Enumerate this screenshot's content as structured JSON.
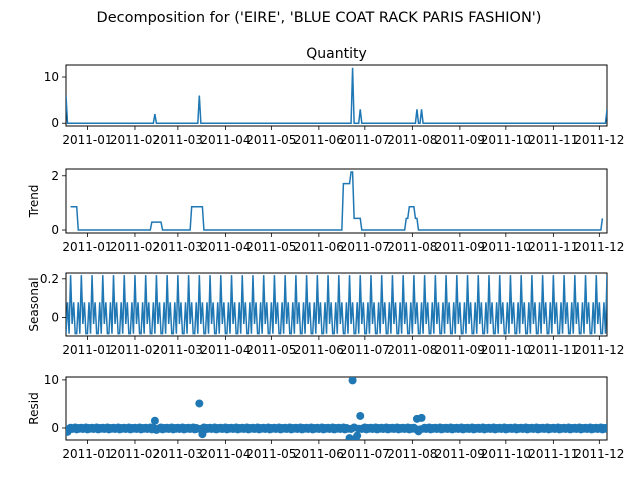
{
  "figure": {
    "title": "Decomposition for ('EIRE', 'BLUE COAT RACK PARIS FASHION')"
  },
  "colors": {
    "line": "#1f77b4",
    "axis": "#000000"
  },
  "x_axis": {
    "tick_labels": [
      "2011-01",
      "2011-02",
      "2011-03",
      "2011-04",
      "2011-05",
      "2011-06",
      "2011-07",
      "2011-08",
      "2011-09",
      "2011-10",
      "2011-11",
      "2011-12"
    ],
    "ticks_index": [
      14,
      45,
      73,
      104,
      134,
      165,
      195,
      226,
      257,
      287,
      318,
      348
    ],
    "xlim": [
      0,
      353
    ]
  },
  "chart_data": [
    {
      "type": "line",
      "title": "Quantity",
      "ylabel": "",
      "ylim": [
        -0.6,
        12.6
      ],
      "yticks": [
        0,
        10
      ],
      "n": 354,
      "baseline": 0,
      "points": [
        [
          0,
          6
        ],
        [
          58,
          2
        ],
        [
          87,
          6
        ],
        [
          187,
          12
        ],
        [
          192,
          3
        ],
        [
          229,
          3
        ],
        [
          232,
          3
        ],
        [
          353,
          3
        ]
      ]
    },
    {
      "type": "line",
      "title": "",
      "ylabel": "Trend",
      "ylim": [
        -0.11,
        2.25
      ],
      "yticks": [
        0,
        2
      ],
      "segments": [
        [
          3,
          7,
          0.86
        ],
        [
          56,
          62,
          0.29
        ],
        [
          82,
          89,
          0.86
        ],
        [
          181,
          185,
          1.71
        ],
        [
          186,
          187,
          2.14
        ],
        [
          188,
          192,
          0.43
        ],
        [
          222,
          223,
          0.43
        ],
        [
          224,
          227,
          0.86
        ],
        [
          228,
          229,
          0.43
        ],
        [
          350,
          350,
          0.43
        ]
      ]
    },
    {
      "type": "line",
      "title": "",
      "ylabel": "Seasonal",
      "ylim": [
        -0.095,
        0.23
      ],
      "yticks": [
        0.0,
        0.2
      ],
      "period": 7,
      "pattern": [
        0.219,
        -0.033,
        0.079,
        -0.083,
        -0.083,
        0.079,
        -0.083
      ]
    },
    {
      "type": "scatter",
      "title": "",
      "ylabel": "Resid",
      "ylim": [
        -2.5,
        10.6
      ],
      "yticks": [
        0,
        10
      ],
      "base": [
        -0.3,
        0.0,
        -0.15,
        0.05,
        -0.2,
        -0.05,
        0.1
      ],
      "outliers": [
        [
          58,
          1.5
        ],
        [
          59,
          -0.4
        ],
        [
          87,
          5.1
        ],
        [
          89,
          -1.3
        ],
        [
          187,
          9.9
        ],
        [
          185,
          -2.1
        ],
        [
          189,
          -2.2
        ],
        [
          190,
          -1.6
        ],
        [
          192,
          2.5
        ],
        [
          229,
          1.9
        ],
        [
          232,
          2.1
        ],
        [
          230,
          -0.7
        ],
        [
          1,
          -0.8
        ]
      ]
    }
  ]
}
